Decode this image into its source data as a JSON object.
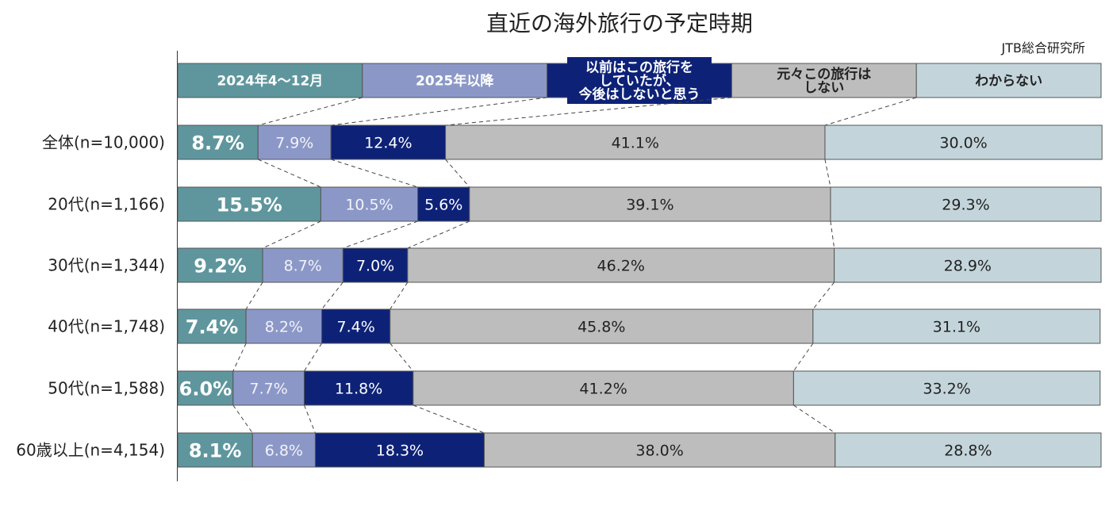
{
  "title": "直近の海外旅行の予定時期",
  "source": "JTB総合研究所",
  "chart_data": {
    "type": "stacked-bar-100",
    "orientation": "horizontal",
    "categories": [
      "全体(n=10,000)",
      "20代(n=1,166)",
      "30代(n=1,344)",
      "40代(n=1,748)",
      "50代(n=1,588)",
      "60歳以上(n=4,154)"
    ],
    "series": [
      {
        "name": "2024年4～12月",
        "color": "#5f969e",
        "values": [
          8.7,
          15.5,
          9.2,
          7.4,
          6.0,
          8.1
        ]
      },
      {
        "name": "2025年以降",
        "color": "#8b98c7",
        "values": [
          7.9,
          10.5,
          8.7,
          8.2,
          7.7,
          6.8
        ]
      },
      {
        "name": "以前はこの旅行をしていたが、今後はしないと思う",
        "color": "#0d2277",
        "values": [
          12.4,
          5.6,
          7.0,
          7.4,
          11.8,
          18.3
        ]
      },
      {
        "name": "元々この旅行はしない",
        "color": "#bdbdbd",
        "values": [
          41.1,
          39.1,
          46.2,
          45.8,
          41.2,
          38.0
        ]
      },
      {
        "name": "わからない",
        "color": "#c3d5db",
        "values": [
          30.0,
          29.3,
          28.9,
          31.1,
          33.2,
          28.8
        ]
      }
    ],
    "value_labels": [
      [
        "8.7%",
        "7.9%",
        "12.4%",
        "41.1%",
        "30.0%"
      ],
      [
        "15.5%",
        "10.5%",
        "5.6%",
        "39.1%",
        "29.3%"
      ],
      [
        "9.2%",
        "8.7%",
        "7.0%",
        "46.2%",
        "28.9%"
      ],
      [
        "7.4%",
        "8.2%",
        "7.4%",
        "45.8%",
        "31.1%"
      ],
      [
        "6.0%",
        "7.7%",
        "11.8%",
        "41.2%",
        "33.2%"
      ],
      [
        "8.1%",
        "6.8%",
        "18.3%",
        "38.0%",
        "28.8%"
      ]
    ],
    "legend": [
      {
        "lines": [
          "2024年4～12月"
        ],
        "text_color": "#ffffff"
      },
      {
        "lines": [
          "2025年以降"
        ],
        "text_color": "#ffffff"
      },
      {
        "lines": [
          "以前はこの旅行を",
          "していたが、",
          "今後はしないと思う"
        ],
        "text_color": "#ffffff"
      },
      {
        "lines": [
          "元々この旅行は",
          "しない"
        ],
        "text_color": "#222222"
      },
      {
        "lines": [
          "わからない"
        ],
        "text_color": "#222222"
      }
    ],
    "legend_placement": "top",
    "xlim": [
      0,
      100
    ],
    "grid": false,
    "connector_lines": true
  }
}
